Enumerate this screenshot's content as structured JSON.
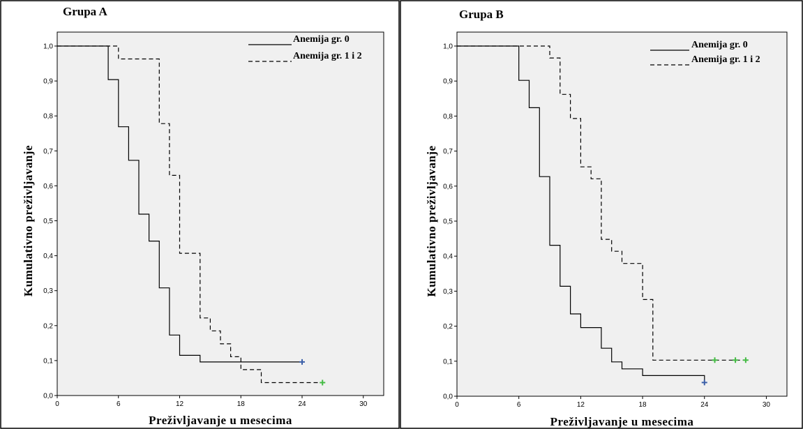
{
  "chart_data": [
    {
      "type": "line",
      "step": true,
      "title": "Grupa A",
      "xlabel": "Preživljavanje u mesecima",
      "ylabel": "Kumulativno preživljavanje",
      "xlim": [
        0,
        32
      ],
      "ylim": [
        0,
        1.0
      ],
      "xticks": [
        "0",
        "6",
        "12",
        "18",
        "24",
        "30"
      ],
      "yticks": [
        "0,0",
        "0,1",
        "0,2",
        "0,3",
        "0,4",
        "0,5",
        "0,6",
        "0,7",
        "0,8",
        "0,9",
        "1,0"
      ],
      "legend_position": "top-right",
      "grid": false,
      "series": [
        {
          "name": "Anemija gr. 0",
          "style": "solid",
          "points": [
            [
              0,
              1.0
            ],
            [
              5,
              1.0
            ],
            [
              5,
              0.904
            ],
            [
              6,
              0.904
            ],
            [
              6,
              0.769
            ],
            [
              7,
              0.769
            ],
            [
              7,
              0.673
            ],
            [
              8,
              0.673
            ],
            [
              8,
              0.519
            ],
            [
              9,
              0.519
            ],
            [
              9,
              0.442
            ],
            [
              10,
              0.442
            ],
            [
              10,
              0.308
            ],
            [
              11,
              0.308
            ],
            [
              11,
              0.173
            ],
            [
              12,
              0.173
            ],
            [
              12,
              0.115
            ],
            [
              14,
              0.115
            ],
            [
              14,
              0.096
            ],
            [
              24,
              0.096
            ]
          ],
          "censored": [
            [
              24,
              0.096
            ]
          ],
          "censor_color": "#3b5fa8"
        },
        {
          "name": "Anemija gr. 1 i 2",
          "style": "dashed",
          "points": [
            [
              0,
              1.0
            ],
            [
              6,
              1.0
            ],
            [
              6,
              0.963
            ],
            [
              10,
              0.963
            ],
            [
              10,
              0.778
            ],
            [
              11,
              0.778
            ],
            [
              11,
              0.63
            ],
            [
              12,
              0.63
            ],
            [
              12,
              0.407
            ],
            [
              14,
              0.407
            ],
            [
              14,
              0.222
            ],
            [
              15,
              0.222
            ],
            [
              15,
              0.185
            ],
            [
              16,
              0.185
            ],
            [
              16,
              0.148
            ],
            [
              17,
              0.148
            ],
            [
              17,
              0.111
            ],
            [
              18,
              0.111
            ],
            [
              18,
              0.074
            ],
            [
              20,
              0.074
            ],
            [
              20,
              0.037
            ],
            [
              26,
              0.037
            ]
          ],
          "censored": [
            [
              26,
              0.037
            ]
          ],
          "censor_color": "#44bb44"
        }
      ]
    },
    {
      "type": "line",
      "step": true,
      "title": "Grupa B",
      "xlabel": "Preživljavanje u mesecima",
      "ylabel": "Kumulativno preživljavanje",
      "xlim": [
        0,
        32
      ],
      "ylim": [
        0,
        1.0
      ],
      "xticks": [
        "0",
        "6",
        "12",
        "18",
        "24",
        "30"
      ],
      "yticks": [
        "0,0",
        "0,1",
        "0,2",
        "0,3",
        "0,4",
        "0,5",
        "0,6",
        "0,7",
        "0,8",
        "0,9",
        "1,0"
      ],
      "legend_position": "top-right",
      "grid": false,
      "series": [
        {
          "name": "Anemija gr. 0",
          "style": "solid",
          "points": [
            [
              0,
              1.0
            ],
            [
              6,
              1.0
            ],
            [
              6,
              0.902
            ],
            [
              7,
              0.902
            ],
            [
              7,
              0.824
            ],
            [
              8,
              0.824
            ],
            [
              8,
              0.627
            ],
            [
              9,
              0.627
            ],
            [
              9,
              0.431
            ],
            [
              10,
              0.431
            ],
            [
              10,
              0.314
            ],
            [
              11,
              0.314
            ],
            [
              11,
              0.235
            ],
            [
              12,
              0.235
            ],
            [
              12,
              0.196
            ],
            [
              14,
              0.196
            ],
            [
              14,
              0.137
            ],
            [
              15,
              0.137
            ],
            [
              15,
              0.098
            ],
            [
              16,
              0.098
            ],
            [
              16,
              0.078
            ],
            [
              18,
              0.078
            ],
            [
              18,
              0.059
            ],
            [
              24,
              0.059
            ],
            [
              24,
              0.039
            ]
          ],
          "censored": [
            [
              24,
              0.039
            ]
          ],
          "censor_color": "#3b5fa8"
        },
        {
          "name": "Anemija gr. 1 i 2",
          "style": "dashed",
          "points": [
            [
              0,
              1.0
            ],
            [
              9,
              1.0
            ],
            [
              9,
              0.966
            ],
            [
              10,
              0.966
            ],
            [
              10,
              0.862
            ],
            [
              11,
              0.862
            ],
            [
              11,
              0.793
            ],
            [
              12,
              0.793
            ],
            [
              12,
              0.655
            ],
            [
              13,
              0.655
            ],
            [
              13,
              0.621
            ],
            [
              14,
              0.621
            ],
            [
              14,
              0.448
            ],
            [
              15,
              0.448
            ],
            [
              15,
              0.414
            ],
            [
              16,
              0.414
            ],
            [
              16,
              0.379
            ],
            [
              18,
              0.379
            ],
            [
              18,
              0.276
            ],
            [
              19,
              0.276
            ],
            [
              19,
              0.103
            ],
            [
              28,
              0.103
            ]
          ],
          "censored": [
            [
              25,
              0.103
            ],
            [
              27,
              0.103
            ],
            [
              28,
              0.103
            ]
          ],
          "censor_color": "#44bb44"
        }
      ]
    }
  ]
}
